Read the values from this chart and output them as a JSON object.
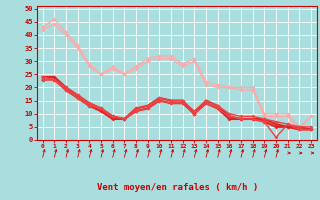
{
  "xlabel": "Vent moyen/en rafales ( km/h )",
  "xlim": [
    -0.5,
    23.5
  ],
  "ylim": [
    0,
    51
  ],
  "yticks": [
    0,
    5,
    10,
    15,
    20,
    25,
    30,
    35,
    40,
    45,
    50
  ],
  "xticks": [
    0,
    1,
    2,
    3,
    4,
    5,
    6,
    7,
    8,
    9,
    10,
    11,
    12,
    13,
    14,
    15,
    16,
    17,
    18,
    19,
    20,
    21,
    22,
    23
  ],
  "bg_color": "#aadddd",
  "grid_color": "#ffffff",
  "red_color": "#cc0000",
  "lines": [
    {
      "y": [
        43,
        46,
        41,
        36,
        29,
        25,
        28,
        25,
        28,
        31,
        32,
        32,
        29,
        31,
        22,
        21,
        20,
        20,
        20,
        10,
        10,
        10,
        5,
        9
      ],
      "color": "#ffaaaa",
      "lw": 1.0,
      "marker": "D",
      "ms": 2.0
    },
    {
      "y": [
        42,
        44,
        40,
        35,
        28,
        25,
        27,
        25,
        27,
        30,
        31,
        31,
        28,
        30,
        21,
        20,
        20,
        19,
        19,
        9,
        9,
        9,
        4,
        9
      ],
      "color": "#ffaaaa",
      "lw": 1.0,
      "marker": "D",
      "ms": 2.0
    },
    {
      "y": [
        24,
        24,
        20,
        17,
        14,
        12,
        9,
        8,
        12,
        13,
        16,
        15,
        15,
        10,
        15,
        13,
        9,
        8,
        8,
        8,
        6,
        5,
        5,
        4
      ],
      "color": "#dd2222",
      "lw": 1.5,
      "marker": "D",
      "ms": 2.0
    },
    {
      "y": [
        23,
        23,
        19,
        16,
        13,
        11,
        8,
        8,
        11,
        12,
        15,
        14,
        14,
        10,
        14,
        12,
        8,
        8,
        8,
        7,
        5,
        5,
        4,
        4
      ],
      "color": "#dd2222",
      "lw": 1.5,
      "marker": "D",
      "ms": 2.0
    },
    {
      "y": [
        24,
        23,
        20,
        17,
        14,
        12,
        9,
        8,
        12,
        13,
        16,
        15,
        15,
        11,
        15,
        13,
        10,
        9,
        9,
        8,
        7,
        6,
        5,
        5
      ],
      "color": "#ee4444",
      "lw": 1.0,
      "marker": "D",
      "ms": 2.0
    },
    {
      "y": [
        23,
        23,
        19,
        16,
        13,
        12,
        9,
        8,
        11,
        12,
        15,
        14,
        14,
        10,
        14,
        12,
        9,
        8,
        8,
        7,
        1,
        6,
        4,
        4
      ],
      "color": "#ee4444",
      "lw": 1.0,
      "marker": "D",
      "ms": 2.0
    }
  ]
}
